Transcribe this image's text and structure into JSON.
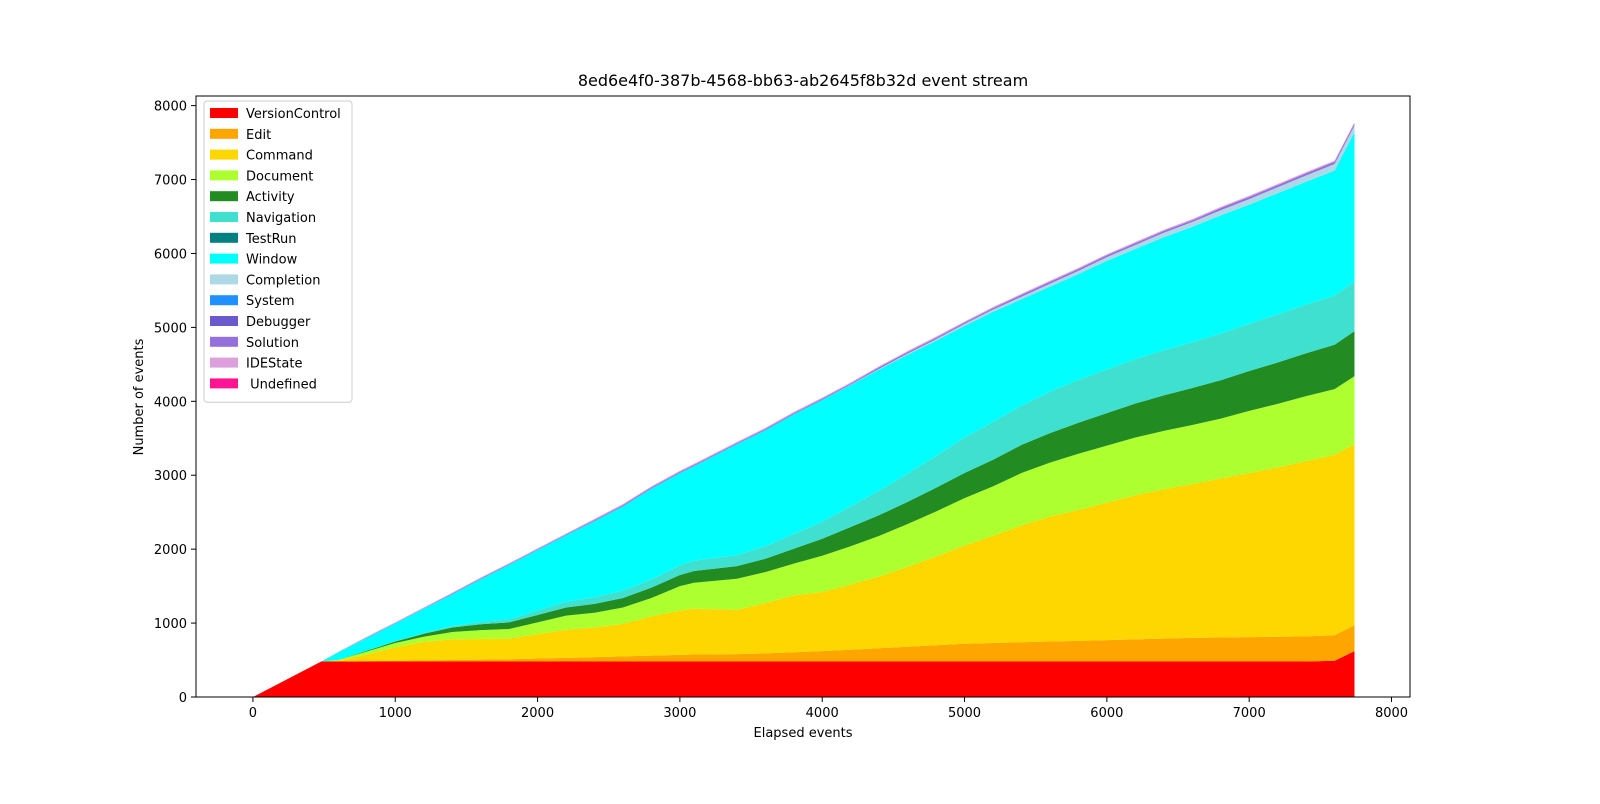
{
  "chart_data": {
    "type": "area",
    "stacked": true,
    "title": "8ed6e4f0-387b-4568-bb63-ab2645f8b32d event stream",
    "xlabel": "Elapsed events",
    "ylabel": "Number of events",
    "xlim": [
      -400,
      8130
    ],
    "ylim": [
      0,
      8130
    ],
    "xticks": [
      0,
      1000,
      2000,
      3000,
      4000,
      5000,
      6000,
      7000,
      8000
    ],
    "yticks": [
      0,
      1000,
      2000,
      3000,
      4000,
      5000,
      6000,
      7000,
      8000
    ],
    "grid": false,
    "legend_position": "top-left",
    "x": [
      0,
      480,
      600,
      800,
      1000,
      1200,
      1400,
      1600,
      1800,
      2000,
      2200,
      2400,
      2600,
      2800,
      3000,
      3100,
      3400,
      3600,
      3800,
      4000,
      4200,
      4400,
      4600,
      4800,
      5000,
      5200,
      5400,
      5600,
      5800,
      6000,
      6200,
      6400,
      6600,
      6800,
      7000,
      7200,
      7400,
      7600,
      7740
    ],
    "series": [
      {
        "name": "VersionControl",
        "color": "#ff0000",
        "values": [
          0,
          480,
          480,
          480,
          480,
          480,
          480,
          480,
          480,
          480,
          480,
          480,
          480,
          480,
          480,
          480,
          480,
          480,
          480,
          480,
          480,
          480,
          480,
          480,
          480,
          480,
          480,
          480,
          480,
          480,
          480,
          480,
          480,
          480,
          480,
          480,
          480,
          490,
          620
        ]
      },
      {
        "name": "Edit",
        "color": "#ffa500",
        "values": [
          0,
          0,
          0,
          5,
          10,
          15,
          20,
          25,
          30,
          40,
          50,
          60,
          70,
          80,
          90,
          95,
          100,
          110,
          125,
          140,
          160,
          180,
          200,
          220,
          240,
          250,
          260,
          270,
          280,
          290,
          300,
          310,
          320,
          325,
          330,
          335,
          340,
          345,
          350
        ]
      },
      {
        "name": "Command",
        "color": "#ffd700",
        "values": [
          0,
          0,
          15,
          90,
          180,
          250,
          280,
          280,
          280,
          330,
          380,
          400,
          440,
          530,
          600,
          620,
          600,
          680,
          770,
          800,
          880,
          970,
          1080,
          1200,
          1330,
          1450,
          1580,
          1690,
          1770,
          1860,
          1950,
          2020,
          2080,
          2150,
          2220,
          2290,
          2370,
          2440,
          2450
        ]
      },
      {
        "name": "Document",
        "color": "#adff2f",
        "values": [
          0,
          0,
          5,
          40,
          60,
          70,
          100,
          120,
          130,
          160,
          190,
          200,
          220,
          250,
          330,
          350,
          420,
          420,
          430,
          490,
          520,
          550,
          580,
          610,
          640,
          670,
          710,
          730,
          760,
          770,
          780,
          790,
          800,
          810,
          840,
          860,
          880,
          890,
          920
        ]
      },
      {
        "name": "Activity",
        "color": "#228b22",
        "values": [
          0,
          0,
          0,
          10,
          20,
          40,
          60,
          80,
          90,
          100,
          110,
          120,
          130,
          140,
          150,
          160,
          170,
          180,
          200,
          230,
          260,
          280,
          300,
          320,
          340,
          360,
          380,
          400,
          420,
          440,
          460,
          480,
          500,
          520,
          540,
          560,
          580,
          600,
          610
        ]
      },
      {
        "name": "Navigation",
        "color": "#40e0d0",
        "values": [
          0,
          0,
          0,
          0,
          5,
          10,
          20,
          30,
          40,
          60,
          80,
          90,
          100,
          110,
          130,
          140,
          150,
          170,
          200,
          230,
          280,
          330,
          380,
          430,
          480,
          510,
          530,
          560,
          580,
          590,
          600,
          610,
          620,
          630,
          640,
          650,
          660,
          665,
          670
        ]
      },
      {
        "name": "TestRun",
        "color": "#008080",
        "values": [
          0,
          0,
          0,
          0,
          0,
          0,
          0,
          0,
          0,
          0,
          0,
          0,
          0,
          0,
          0,
          0,
          0,
          0,
          0,
          0,
          0,
          0,
          0,
          0,
          0,
          0,
          0,
          0,
          0,
          0,
          0,
          0,
          0,
          0,
          0,
          0,
          0,
          0,
          0
        ]
      },
      {
        "name": "Window",
        "color": "#00ffff",
        "values": [
          0,
          0,
          105,
          175,
          240,
          330,
          430,
          580,
          740,
          820,
          900,
          1030,
          1140,
          1230,
          1250,
          1280,
          1500,
          1570,
          1620,
          1650,
          1640,
          1640,
          1610,
          1560,
          1510,
          1490,
          1440,
          1420,
          1430,
          1470,
          1490,
          1530,
          1560,
          1600,
          1610,
          1640,
          1660,
          1690,
          2020
        ]
      },
      {
        "name": "Completion",
        "color": "#add8e6",
        "values": [
          0,
          0,
          0,
          0,
          0,
          0,
          0,
          0,
          0,
          0,
          0,
          0,
          0,
          0,
          0,
          0,
          0,
          0,
          0,
          0,
          5,
          10,
          15,
          20,
          25,
          30,
          35,
          40,
          45,
          50,
          55,
          60,
          65,
          70,
          75,
          80,
          85,
          90,
          90
        ]
      },
      {
        "name": "System",
        "color": "#1e90ff",
        "values": [
          0,
          0,
          0,
          0,
          0,
          0,
          0,
          0,
          0,
          0,
          0,
          0,
          0,
          0,
          0,
          0,
          0,
          0,
          0,
          0,
          0,
          0,
          0,
          0,
          0,
          0,
          0,
          0,
          0,
          0,
          0,
          0,
          0,
          0,
          0,
          0,
          0,
          0,
          0
        ]
      },
      {
        "name": "Debugger",
        "color": "#6a5acd",
        "values": [
          0,
          0,
          0,
          0,
          0,
          0,
          0,
          0,
          0,
          0,
          0,
          0,
          0,
          0,
          0,
          0,
          0,
          0,
          0,
          0,
          0,
          0,
          0,
          0,
          0,
          0,
          0,
          0,
          0,
          0,
          0,
          0,
          0,
          0,
          0,
          0,
          0,
          0,
          0
        ]
      },
      {
        "name": "Solution",
        "color": "#9370db",
        "values": [
          0,
          0,
          0,
          5,
          5,
          5,
          10,
          10,
          10,
          10,
          10,
          15,
          15,
          15,
          15,
          15,
          15,
          15,
          15,
          15,
          15,
          20,
          20,
          20,
          20,
          20,
          25,
          25,
          25,
          25,
          25,
          25,
          25,
          30,
          30,
          30,
          30,
          30,
          30
        ]
      },
      {
        "name": "IDEState",
        "color": "#dda0dd",
        "values": [
          0,
          0,
          5,
          10,
          10,
          10,
          10,
          10,
          10,
          10,
          10,
          15,
          15,
          15,
          15,
          15,
          15,
          15,
          15,
          15,
          15,
          15,
          15,
          15,
          15,
          15,
          15,
          15,
          15,
          15,
          15,
          15,
          15,
          15,
          15,
          15,
          15,
          15,
          15
        ]
      },
      {
        "name": " Undefined",
        "color": "#ff1493",
        "values": [
          0,
          0,
          0,
          0,
          0,
          0,
          0,
          0,
          0,
          0,
          0,
          0,
          0,
          0,
          0,
          0,
          0,
          0,
          0,
          0,
          0,
          0,
          0,
          0,
          0,
          0,
          0,
          0,
          0,
          0,
          0,
          0,
          0,
          0,
          0,
          0,
          0,
          0,
          0
        ]
      }
    ]
  }
}
